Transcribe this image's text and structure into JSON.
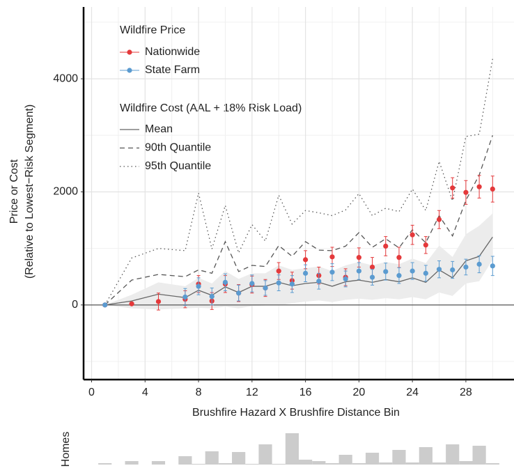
{
  "chart_data": {
    "type": "line",
    "x_title": "Brushfire Hazard X Brushfire Distance Bin",
    "y_title": [
      "Price or Cost",
      "(Relative to Lowest−Risk Segment)"
    ],
    "xlim": [
      -0.6,
      31.6
    ],
    "xticks": [
      0,
      4,
      8,
      12,
      16,
      20,
      24,
      28
    ],
    "x_minor_ticks": [
      2,
      6,
      10,
      14,
      18,
      22,
      26,
      30
    ],
    "ylim": [
      -1320,
      5270
    ],
    "yticks": [
      0,
      2000,
      4000
    ],
    "y_minor_ticks": [
      -1000,
      1000,
      3000,
      5000
    ],
    "grid": true,
    "zero_line": 0,
    "price_legend_title": "Wildfire Price",
    "cost_legend_title": "Wildfire Cost (AAL + 18% Risk Load)",
    "x": [
      1,
      2,
      3,
      4,
      5,
      6,
      7,
      8,
      9,
      10,
      11,
      12,
      13,
      14,
      15,
      16,
      17,
      18,
      19,
      20,
      21,
      22,
      23,
      24,
      25,
      26,
      27,
      28,
      29,
      30
    ],
    "series": [
      {
        "name": "Nationwide",
        "color": "#e4393b",
        "values": [
          0,
          null,
          20,
          null,
          60,
          null,
          100,
          370,
          70,
          370,
          210,
          360,
          300,
          600,
          430,
          800,
          520,
          850,
          490,
          840,
          670,
          1040,
          840,
          1240,
          1060,
          1510,
          2070,
          1990,
          2090,
          2050
        ],
        "errors": [
          null,
          null,
          null,
          null,
          150,
          null,
          150,
          150,
          150,
          150,
          150,
          150,
          150,
          150,
          150,
          160,
          150,
          170,
          150,
          170,
          170,
          170,
          180,
          170,
          150,
          160,
          180,
          210,
          200,
          230
        ]
      },
      {
        "name": "State Farm",
        "color": "#5b9bd0",
        "values": [
          0,
          null,
          null,
          null,
          null,
          null,
          140,
          330,
          150,
          400,
          210,
          380,
          300,
          390,
          370,
          560,
          420,
          580,
          460,
          600,
          490,
          590,
          520,
          600,
          560,
          630,
          620,
          670,
          720,
          690
        ],
        "errors": [
          null,
          null,
          null,
          null,
          null,
          null,
          150,
          150,
          150,
          150,
          140,
          150,
          130,
          140,
          150,
          150,
          140,
          150,
          140,
          150,
          140,
          150,
          140,
          150,
          140,
          150,
          150,
          140,
          150,
          170
        ]
      }
    ],
    "cost_x": [
      1,
      3,
      5,
      7,
      8,
      9,
      10,
      11,
      12,
      13,
      14,
      15,
      16,
      17,
      18,
      19,
      20,
      21,
      22,
      23,
      24,
      25,
      26,
      27,
      28,
      29,
      30
    ],
    "cost_series": [
      {
        "name": "Mean",
        "dash": "solid",
        "color": "#666666",
        "values": [
          0,
          70,
          190,
          130,
          260,
          170,
          320,
          220,
          330,
          330,
          400,
          340,
          380,
          400,
          330,
          410,
          440,
          400,
          450,
          410,
          480,
          400,
          620,
          480,
          780,
          860,
          1200
        ]
      },
      {
        "name": "90th Quantile",
        "dash": "dashed",
        "color": "#555555",
        "values": [
          0,
          440,
          540,
          500,
          620,
          560,
          1120,
          590,
          700,
          680,
          1050,
          860,
          1120,
          970,
          960,
          1040,
          1280,
          1020,
          1170,
          1010,
          1330,
          1100,
          1580,
          1220,
          1850,
          2300,
          3000
        ]
      },
      {
        "name": "95th Quantile",
        "dash": "dotted",
        "color": "#555555",
        "values": [
          0,
          830,
          1000,
          960,
          1980,
          990,
          1760,
          920,
          1420,
          1130,
          1940,
          1430,
          1670,
          1630,
          1580,
          1680,
          1970,
          1580,
          1710,
          1650,
          2050,
          1670,
          2540,
          1840,
          2980,
          3020,
          4350
        ]
      }
    ],
    "band_color": "#ececec",
    "band_low": [
      0,
      -60,
      -80,
      -60,
      -50,
      -60,
      -30,
      -60,
      -20,
      -10,
      -10,
      30,
      60,
      80,
      50,
      90,
      110,
      90,
      120,
      100,
      140,
      100,
      220,
      160,
      380,
      420,
      800
    ],
    "band_high": [
      0,
      180,
      400,
      330,
      480,
      380,
      600,
      460,
      560,
      560,
      700,
      620,
      650,
      680,
      600,
      700,
      760,
      700,
      760,
      720,
      820,
      740,
      1050,
      850,
      1250,
      1400,
      1620
    ],
    "homes": {
      "label": "Homes",
      "color": "#cccccc",
      "ylim": [
        0,
        47
      ],
      "values": [
        2,
        null,
        5,
        null,
        5,
        null,
        12,
        1,
        19,
        2,
        18,
        1,
        29,
        1,
        45,
        7,
        5,
        2,
        14,
        2,
        17,
        3,
        21,
        3,
        25,
        3,
        29,
        5,
        27,
        2
      ]
    }
  }
}
